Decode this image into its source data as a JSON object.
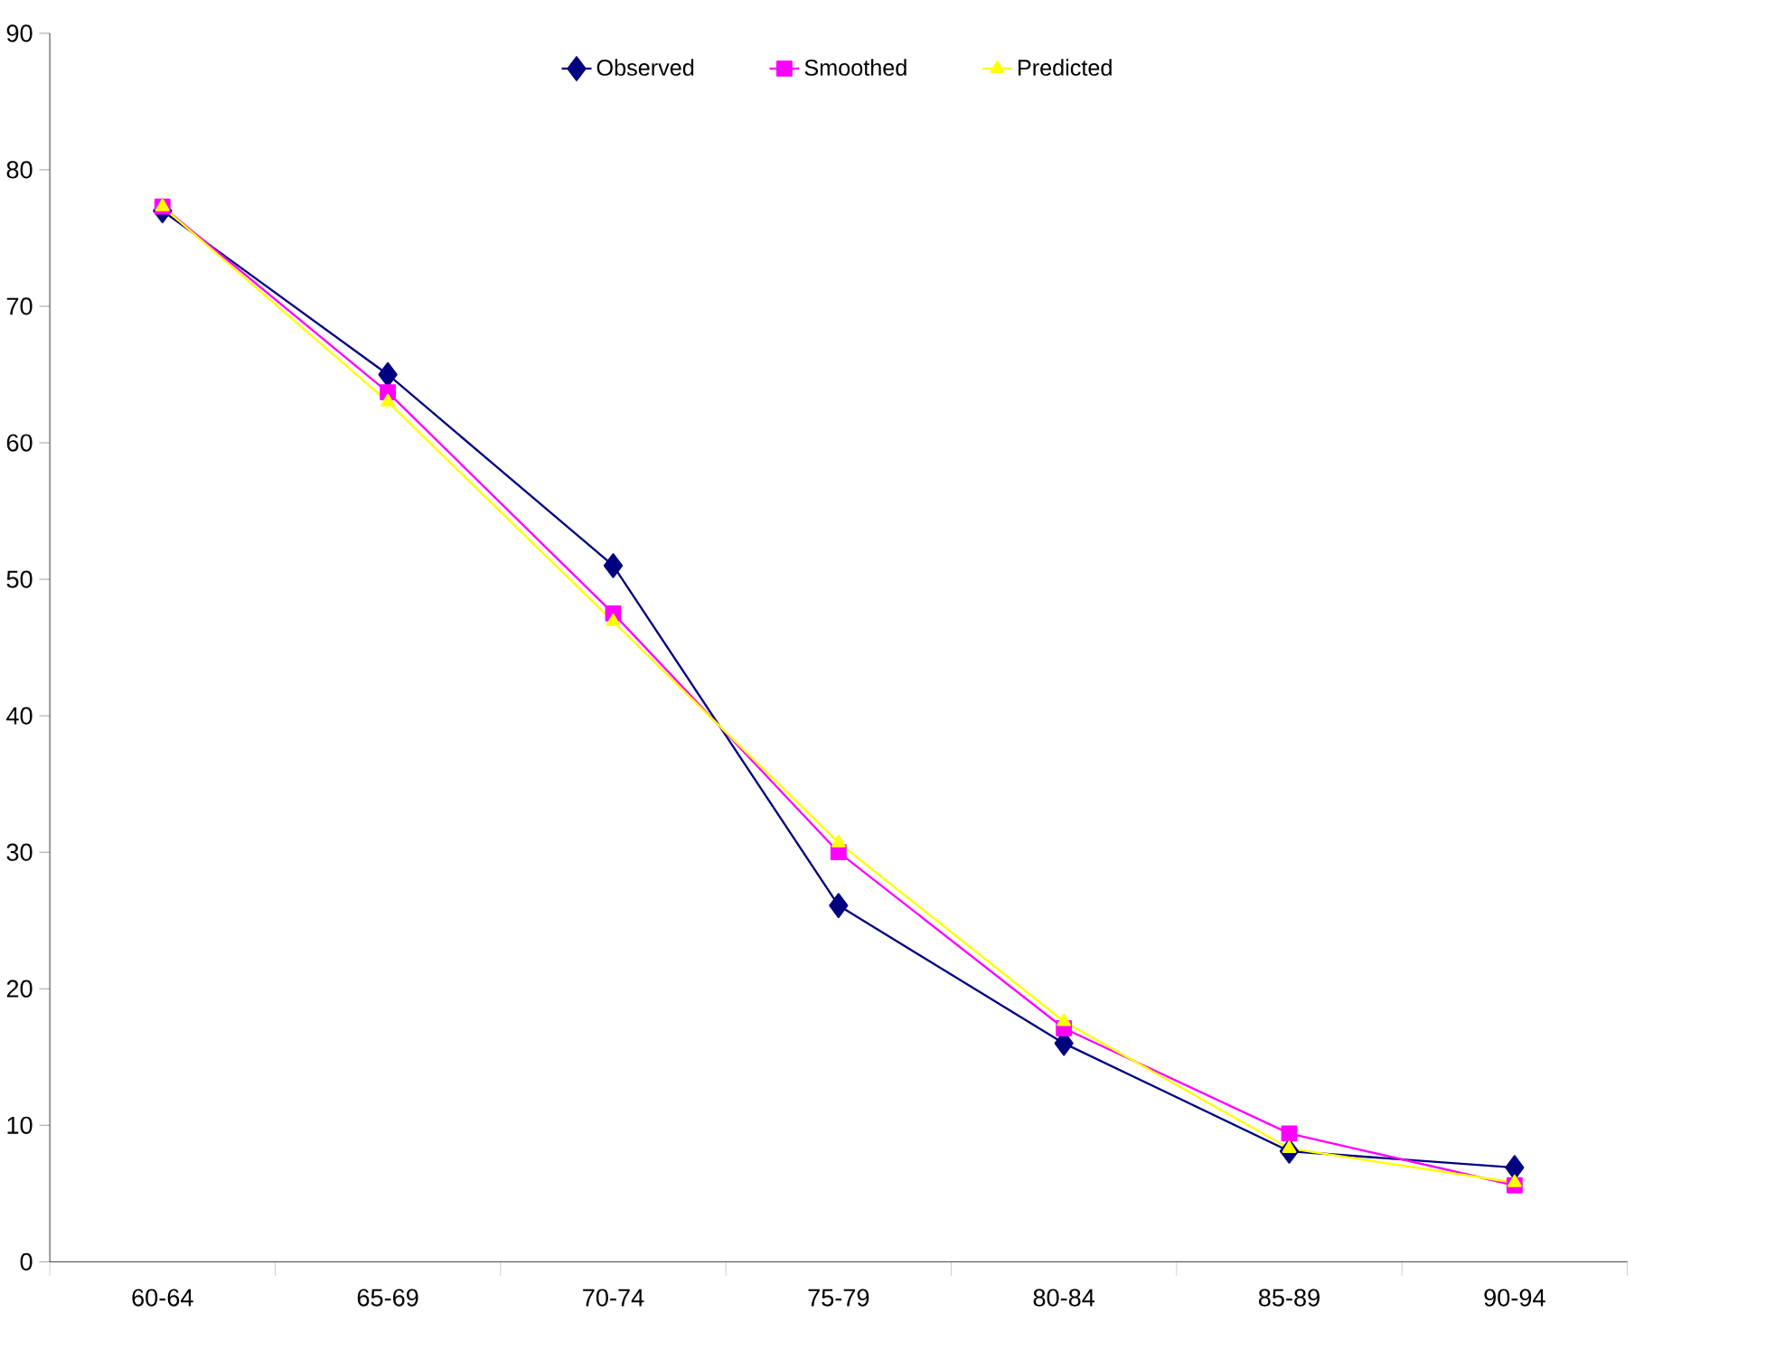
{
  "chart_data": {
    "type": "line",
    "categories": [
      "60-64",
      "65-69",
      "70-74",
      "75-79",
      "80-84",
      "85-89",
      "90-94"
    ],
    "series": [
      {
        "name": "Observed",
        "color": "#000080",
        "marker": "diamond",
        "values": [
          77.0,
          65.0,
          51.0,
          26.1,
          16.0,
          8.1,
          6.9
        ]
      },
      {
        "name": "Smoothed",
        "color": "#ff00ff",
        "marker": "square",
        "values": [
          77.3,
          63.7,
          47.5,
          30.0,
          17.1,
          9.4,
          5.6
        ]
      },
      {
        "name": "Predicted",
        "color": "#ffff00",
        "marker": "triangle",
        "values": [
          77.3,
          63.0,
          46.9,
          30.7,
          17.6,
          8.3,
          5.8
        ]
      }
    ],
    "ylim": [
      0,
      90
    ],
    "yticks": [
      0,
      10,
      20,
      30,
      40,
      50,
      60,
      70,
      80,
      90
    ],
    "grid": false,
    "legend": "top",
    "line_style": "solid"
  }
}
